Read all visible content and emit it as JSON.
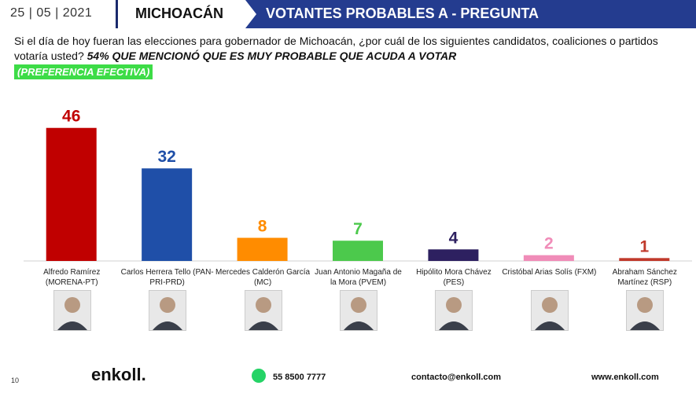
{
  "header": {
    "date": "25 | 05 | 2021",
    "region": "MICHOACÁN",
    "banner": "VOTANTES PROBABLES A - PREGUNTA"
  },
  "question": {
    "text": "Si el día de hoy fueran las elecciones para gobernador de Michoacán, ¿por cuál de los siguientes candidatos, coaliciones o partidos votaría usted?",
    "emphasis": "54% QUE MENCIONÓ QUE ES MUY PROBABLE QUE ACUDA A VOTAR",
    "badge": "(PREFERENCIA EFECTIVA)"
  },
  "chart_data": {
    "type": "bar",
    "categories": [
      "Alfredo Ramírez (MORENA-PT)",
      "Carlos Herrera Tello (PAN-PRI-PRD)",
      "Mercedes Calderón García (MC)",
      "Juan Antonio Magaña de la Mora (PVEM)",
      "Hipólito Mora Chávez (PES)",
      "Cristóbal Arias Solís (FXM)",
      "Abraham Sánchez Martínez (RSP)"
    ],
    "values": [
      46,
      32,
      8,
      7,
      4,
      2,
      1
    ],
    "colors": [
      "#c00000",
      "#1f4fa8",
      "#ff8c00",
      "#4cc94c",
      "#2d2060",
      "#f08cb8",
      "#c0392b"
    ],
    "ylim": [
      0,
      50
    ]
  },
  "candidates": [
    {
      "line1": "Alfredo Ramírez",
      "line2": "(MORENA-PT)"
    },
    {
      "line1": "Carlos Herrera Tello (PAN-",
      "line2": "PRI-PRD)"
    },
    {
      "line1": "Mercedes Calderón García",
      "line2": "(MC)"
    },
    {
      "line1": "Juan Antonio Magaña de",
      "line2": "la Mora (PVEM)"
    },
    {
      "line1": "Hipólito Mora Chávez",
      "line2": "(PES)"
    },
    {
      "line1": "Cristóbal Arias Solís (FXM)",
      "line2": ""
    },
    {
      "line1": "Abraham Sánchez",
      "line2": "Martínez (RSP)"
    }
  ],
  "footer": {
    "page": "10",
    "logo": "enkoll.",
    "phone": "55 8500 7777",
    "email": "contacto@enkoll.com",
    "web": "www.enkoll.com"
  }
}
